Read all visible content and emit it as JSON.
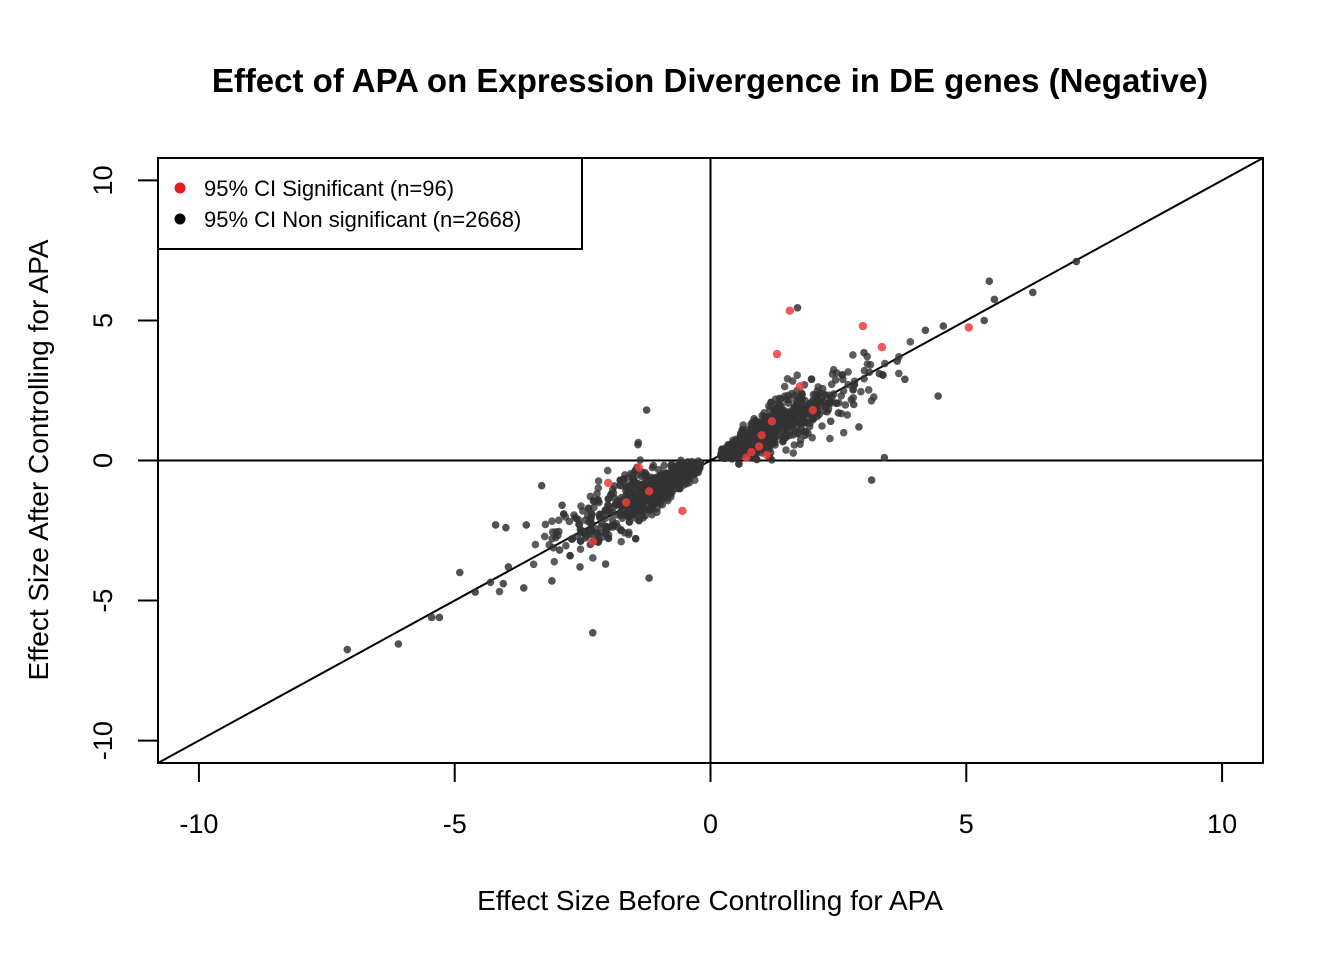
{
  "chart_data": {
    "type": "scatter",
    "title": "Effect of APA on Expression Divergence in DE genes (Negative)",
    "xlabel": "Effect Size Before Controlling for APA",
    "ylabel": "Effect Size After Controlling for APA",
    "xlim": [
      -10.8,
      10.8
    ],
    "ylim": [
      -10.8,
      10.8
    ],
    "xticks": [
      "-10",
      "-5",
      "0",
      "5",
      "10"
    ],
    "yticks": [
      "-10",
      "-5",
      "0",
      "5",
      "10"
    ],
    "reference_lines": [
      "y = x",
      "x = 0",
      "y = 0"
    ],
    "legend": {
      "position": "top-left",
      "entries": [
        {
          "label": "95% CI Significant (n=96)",
          "color": "#e41a1c"
        },
        {
          "label": "95% CI Non significant (n=2668)",
          "color": "#000000"
        }
      ]
    },
    "series": [
      {
        "key": "significant",
        "color": "#ee3b3b",
        "x": [
          1.55,
          2.98,
          5.05,
          3.35,
          1.3,
          1.75,
          -2.0,
          -1.4,
          -1.2,
          -1.65,
          -2.3,
          0.8,
          1.0,
          1.2,
          0.95,
          -0.55,
          2.0,
          1.1,
          0.7
        ],
        "y": [
          5.35,
          4.8,
          4.75,
          4.05,
          3.8,
          2.65,
          -0.8,
          -0.25,
          -1.1,
          -1.5,
          -2.9,
          0.3,
          0.9,
          1.4,
          0.5,
          -1.8,
          1.8,
          0.2,
          0.1
        ]
      },
      {
        "key": "non_significant",
        "color": "#333333",
        "x": [
          7.15,
          6.3,
          5.45,
          5.55,
          5.35,
          4.55,
          4.2,
          3.65,
          4.45,
          3.3,
          3.8,
          3.0,
          2.8,
          2.35,
          1.85,
          1.2,
          0.7,
          1.7,
          2.1,
          2.5,
          2.9,
          3.15,
          3.4,
          -7.1,
          -6.1,
          -5.45,
          -4.9,
          -5.3,
          -4.6,
          -4.3,
          -4.0,
          -3.95,
          -4.2,
          -3.65,
          -3.3,
          -2.95,
          -2.7,
          -2.3,
          -2.05,
          -1.75,
          -1.2,
          -1.6,
          -2.2,
          -2.9,
          -3.6,
          -2.35,
          -1.25,
          -4.05,
          -3.1,
          -2.55
        ],
        "y": [
          7.1,
          6.0,
          6.4,
          5.75,
          5.0,
          4.8,
          4.65,
          3.55,
          2.3,
          3.1,
          2.9,
          3.85,
          2.0,
          1.4,
          0.9,
          0.6,
          0.4,
          5.45,
          2.3,
          1.7,
          1.2,
          -0.7,
          0.1,
          -6.75,
          -6.55,
          -5.6,
          -4.0,
          -5.6,
          -4.7,
          -4.35,
          -2.4,
          -3.8,
          -2.3,
          -4.55,
          -0.9,
          -3.2,
          -2.8,
          -6.15,
          -3.7,
          -2.5,
          -4.2,
          -2.0,
          -1.4,
          -1.6,
          -2.3,
          -3.0,
          1.8,
          -4.4,
          -4.3,
          -3.8
        ]
      }
    ]
  }
}
